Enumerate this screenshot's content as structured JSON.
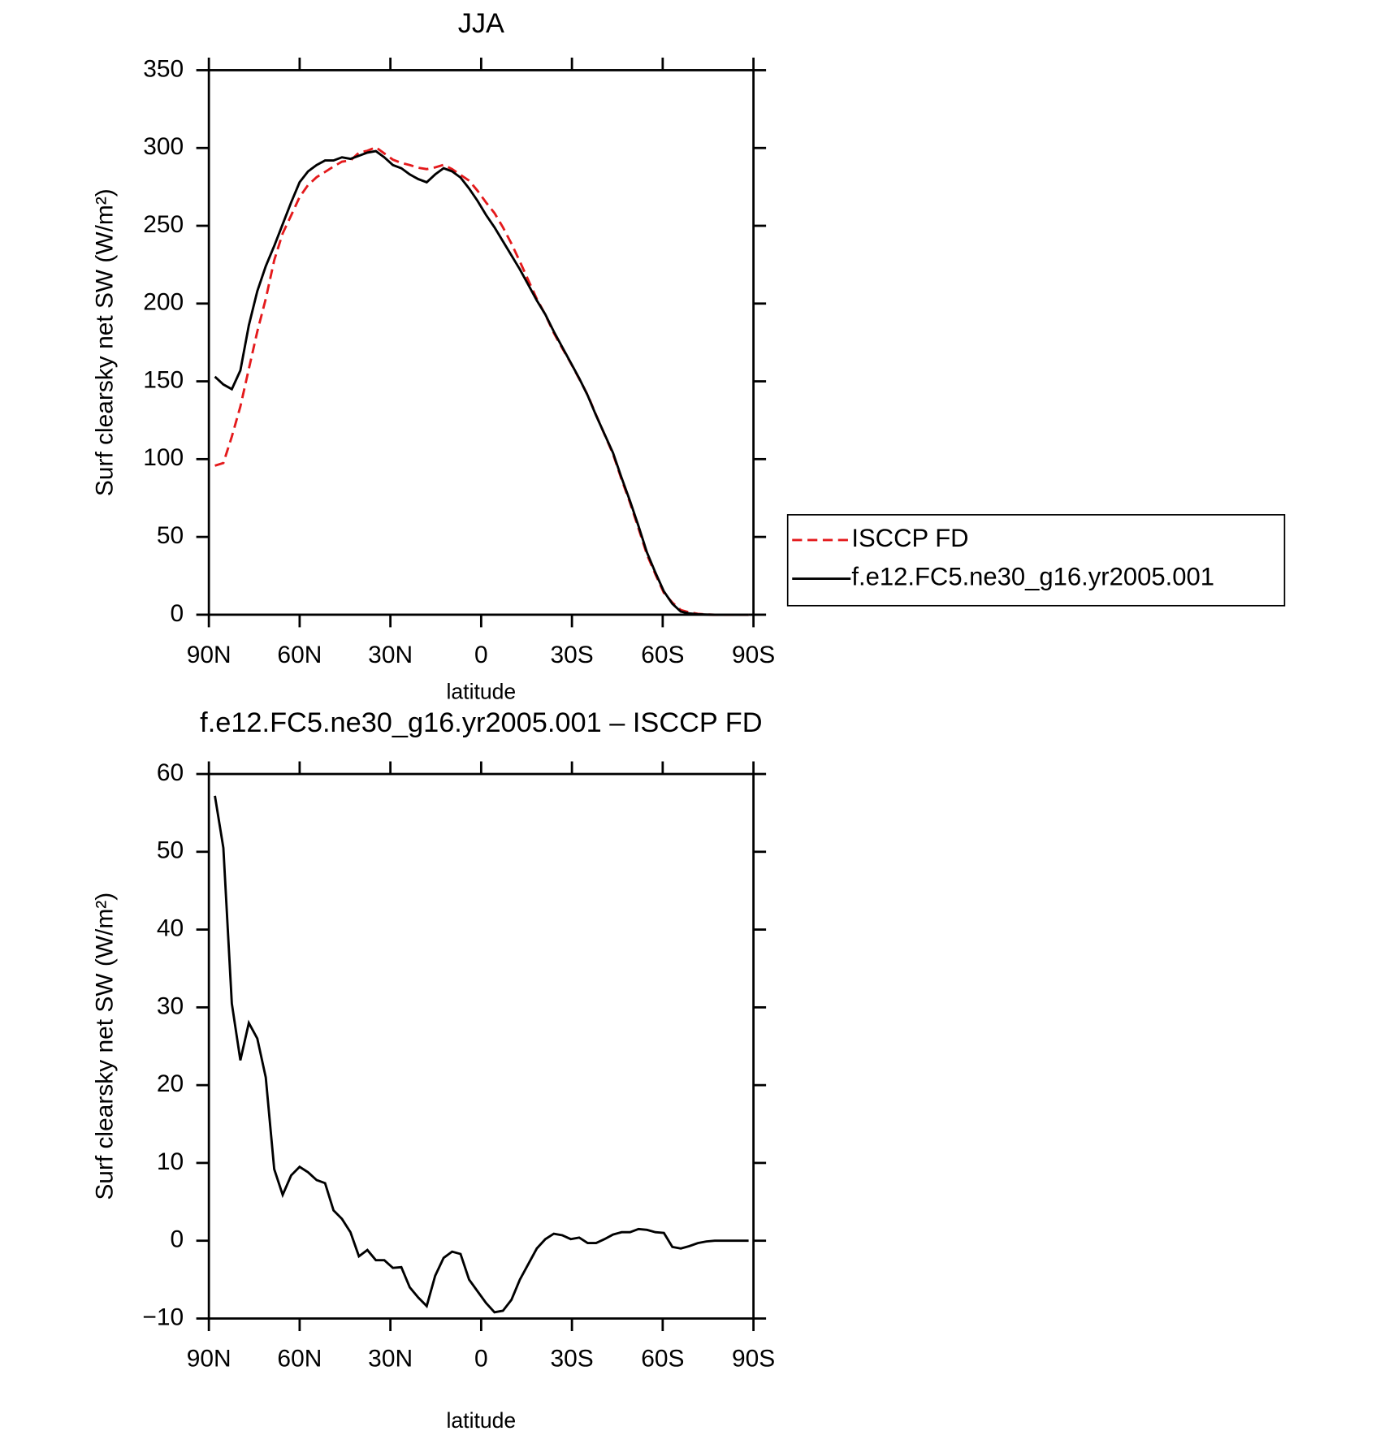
{
  "chart_data": [
    {
      "type": "line",
      "title": "JJA",
      "xlabel": "latitude",
      "ylabel": "Surf clearsky net SW (W/m²)",
      "legend": "outside right",
      "x": [
        88.0,
        85.2,
        82.4,
        79.6,
        76.8,
        74.0,
        71.2,
        68.4,
        65.6,
        62.8,
        60.0,
        57.2,
        54.4,
        51.6,
        48.8,
        46.0,
        43.2,
        40.4,
        37.6,
        34.8,
        32.0,
        29.2,
        26.4,
        23.6,
        20.8,
        18.0,
        15.2,
        12.4,
        9.6,
        6.8,
        4.0,
        1.2,
        -1.6,
        -4.4,
        -7.2,
        -10.0,
        -12.8,
        -15.6,
        -18.4,
        -21.2,
        -24.0,
        -26.8,
        -29.6,
        -32.4,
        -35.2,
        -38.0,
        -40.8,
        -43.6,
        -46.4,
        -49.2,
        -52.0,
        -54.8,
        -57.6,
        -60.4,
        -63.2,
        -66.0,
        -68.8,
        -71.6,
        -74.4,
        -77.2,
        -80.0,
        -82.8,
        -85.6,
        -88.4
      ],
      "series": [
        {
          "name": "ISCCP FD",
          "color": "#e41a1c",
          "dashed": true,
          "values": [
            95.8,
            97.5,
            114.5,
            133.8,
            158,
            182,
            203,
            227.8,
            245.1,
            256.6,
            268.5,
            276.2,
            281.2,
            284.6,
            288.1,
            291.2,
            291.9,
            297,
            298.2,
            300.5,
            296.5,
            292.5,
            290.4,
            289,
            287.3,
            286.4,
            287.5,
            289.2,
            286.4,
            282.7,
            279,
            272.5,
            265,
            258.2,
            249,
            238.6,
            227,
            215,
            203,
            192.8,
            181.1,
            171.3,
            161.8,
            151.6,
            141.3,
            128.3,
            115.8,
            103.2,
            86.9,
            71.9,
            55.5,
            38.6,
            25.9,
            14,
            7.8,
            3,
            1.5,
            0.6,
            0.2,
            0,
            0,
            0,
            0,
            0
          ]
        },
        {
          "name": "f.e12.FC5.ne30_g16.yr2005.001",
          "color": "#000000",
          "dashed": false,
          "values": [
            153,
            148,
            145,
            157,
            186,
            208,
            224,
            237,
            251,
            265,
            278,
            285,
            289,
            292,
            292,
            294,
            293,
            295,
            297,
            298,
            294,
            289,
            287,
            283,
            280,
            278,
            283,
            287,
            285,
            281,
            274,
            266,
            257,
            249,
            240,
            231,
            222,
            212,
            202,
            193,
            182,
            172,
            162,
            152,
            141,
            128,
            116,
            104,
            88,
            73,
            57,
            40,
            27,
            15,
            7,
            2,
            0.8,
            0.3,
            0.1,
            0,
            0,
            0,
            0,
            0
          ]
        }
      ],
      "xlim": [
        90,
        -90
      ],
      "xticks": [
        {
          "value": 90,
          "label": "90N"
        },
        {
          "value": 60,
          "label": "60N"
        },
        {
          "value": 30,
          "label": "30N"
        },
        0,
        {
          "value": -30,
          "label": "30S"
        },
        {
          "value": -60,
          "label": "60S"
        },
        {
          "value": -90,
          "label": "90S"
        }
      ],
      "ylim": [
        0,
        350
      ],
      "yticks": [
        0,
        50,
        100,
        150,
        200,
        250,
        300,
        350
      ]
    },
    {
      "type": "line",
      "title": "f.e12.FC5.ne30_g16.yr2005.001 – ISCCP FD",
      "xlabel": "latitude",
      "ylabel": "Surf clearsky net SW (W/m²)",
      "x": [
        88.0,
        85.2,
        82.4,
        79.6,
        76.8,
        74.0,
        71.2,
        68.4,
        65.6,
        62.8,
        60.0,
        57.2,
        54.4,
        51.6,
        48.8,
        46.0,
        43.2,
        40.4,
        37.6,
        34.8,
        32.0,
        29.2,
        26.4,
        23.6,
        20.8,
        18.0,
        15.2,
        12.4,
        9.6,
        6.8,
        4.0,
        1.2,
        -1.6,
        -4.4,
        -7.2,
        -10.0,
        -12.8,
        -15.6,
        -18.4,
        -21.2,
        -24.0,
        -26.8,
        -29.6,
        -32.4,
        -35.2,
        -38.0,
        -40.8,
        -43.6,
        -46.4,
        -49.2,
        -52.0,
        -54.8,
        -57.6,
        -60.4,
        -63.2,
        -66.0,
        -68.8,
        -71.6,
        -74.4,
        -77.2,
        -80.0,
        -82.8,
        -85.6,
        -88.4
      ],
      "series": [
        {
          "color": "#000000",
          "dashed": false,
          "values": [
            57.2,
            50.5,
            30.5,
            23.2,
            28,
            26,
            21,
            9.2,
            5.9,
            8.4,
            9.5,
            8.8,
            7.8,
            7.4,
            3.9,
            2.8,
            1.1,
            -2,
            -1.2,
            -2.5,
            -2.5,
            -3.5,
            -3.4,
            -6,
            -7.3,
            -8.4,
            -4.5,
            -2.2,
            -1.4,
            -1.7,
            -5,
            -6.5,
            -8,
            -9.2,
            -9,
            -7.6,
            -5,
            -3,
            -1,
            0.2,
            0.9,
            0.7,
            0.2,
            0.4,
            -0.3,
            -0.3,
            0.2,
            0.8,
            1.1,
            1.1,
            1.5,
            1.4,
            1.1,
            1,
            -0.8,
            -1,
            -0.7,
            -0.3,
            -0.1,
            0,
            0,
            0,
            0,
            0
          ]
        }
      ],
      "xlim": [
        90,
        -90
      ],
      "xticks": [
        {
          "value": 90,
          "label": "90N"
        },
        {
          "value": 60,
          "label": "60N"
        },
        {
          "value": 30,
          "label": "30N"
        },
        0,
        {
          "value": -30,
          "label": "30S"
        },
        {
          "value": -60,
          "label": "60S"
        },
        {
          "value": -90,
          "label": "90S"
        }
      ],
      "ylim": [
        -10,
        60
      ],
      "yticks": [
        {
          "value": -10,
          "label": "−10"
        },
        0,
        10,
        20,
        30,
        40,
        50,
        60
      ]
    }
  ]
}
